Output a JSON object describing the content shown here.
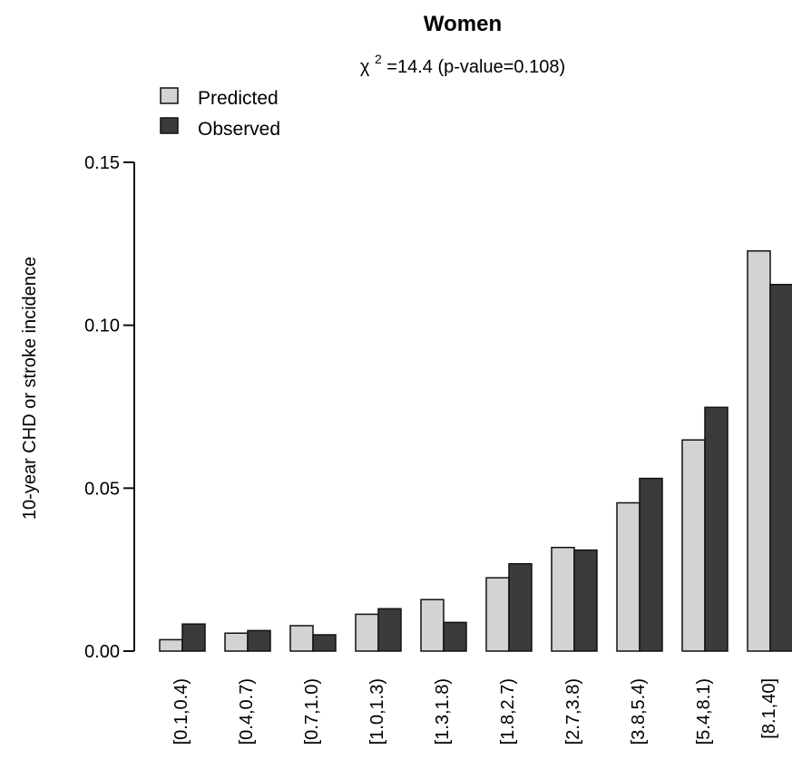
{
  "chart_data": {
    "type": "bar",
    "title": "Women",
    "subtitle": {
      "chi_symbol": "χ",
      "chi_exponent": "2",
      "text": "=14.4 (p-value=0.108)"
    },
    "ylabel": "10-year CHD or stroke incidence",
    "xlabel": "",
    "ylim": [
      0,
      0.15
    ],
    "yticks": [
      {
        "value": 0.0,
        "label": "0.00"
      },
      {
        "value": 0.05,
        "label": "0.05"
      },
      {
        "value": 0.1,
        "label": "0.10"
      },
      {
        "value": 0.15,
        "label": "0.15"
      }
    ],
    "categories": [
      "[0.1,0.4)",
      "[0.4,0.7)",
      "[0.7,1.0)",
      "[1.0,1.3)",
      "[1.3,1.8)",
      "[1.8,2.7)",
      "[2.7,3.8)",
      "[3.8,5.4)",
      "[5.4,8.1)",
      "[8.1,40]"
    ],
    "series": [
      {
        "name": "Predicted",
        "color": "#d3d3d3",
        "values": [
          0.0035,
          0.0055,
          0.0078,
          0.0113,
          0.0158,
          0.0225,
          0.0318,
          0.0455,
          0.0648,
          0.1228
        ]
      },
      {
        "name": "Observed",
        "color": "#3b3b3b",
        "values": [
          0.0083,
          0.0063,
          0.005,
          0.013,
          0.0088,
          0.0268,
          0.031,
          0.053,
          0.0748,
          0.1125
        ]
      }
    ],
    "legend_position": "top-left",
    "grid": false
  }
}
